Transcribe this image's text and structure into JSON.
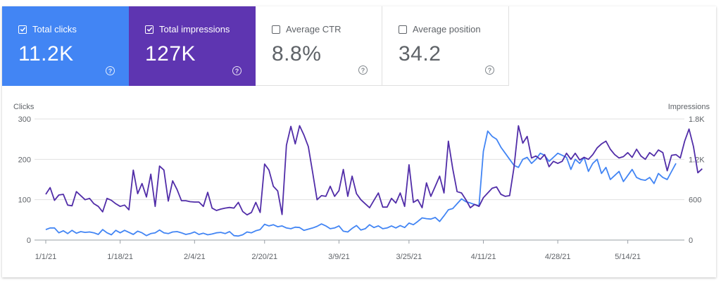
{
  "metrics": [
    {
      "label": "Total clicks",
      "value": "11.2K",
      "checked": true,
      "color": "#4285f4"
    },
    {
      "label": "Total impressions",
      "value": "127K",
      "checked": true,
      "color": "#5e35b1"
    },
    {
      "label": "Average CTR",
      "value": "8.8%",
      "checked": false,
      "color": "#ffffff"
    },
    {
      "label": "Average position",
      "value": "34.2",
      "checked": false,
      "color": "#ffffff"
    }
  ],
  "help_glyph": "?",
  "chart_data": {
    "type": "line",
    "left_axis_label": "Clicks",
    "right_axis_label": "Impressions",
    "left_ticks": [
      "0",
      "100",
      "200",
      "300"
    ],
    "left_ylim": [
      0,
      300
    ],
    "right_ticks": [
      "0",
      "600",
      "1.2K",
      "1.8K"
    ],
    "right_ylim": [
      0,
      1800
    ],
    "x_ticks": [
      "1/1/21",
      "1/18/21",
      "2/4/21",
      "2/20/21",
      "3/9/21",
      "3/25/21",
      "4/11/21",
      "4/28/21",
      "5/14/21"
    ],
    "x_tick_days": [
      0,
      17,
      34,
      50,
      67,
      83,
      100,
      117,
      133
    ],
    "grid": true,
    "series": [
      {
        "name": "Clicks",
        "axis": "left",
        "color": "#4285f4",
        "values": [
          26,
          30,
          30,
          18,
          23,
          16,
          24,
          17,
          21,
          19,
          20,
          18,
          14,
          26,
          18,
          13,
          24,
          18,
          24,
          19,
          14,
          22,
          18,
          11,
          16,
          18,
          25,
          18,
          16,
          20,
          21,
          18,
          14,
          16,
          20,
          14,
          17,
          13,
          15,
          18,
          19,
          16,
          21,
          11,
          10,
          13,
          20,
          18,
          23,
          26,
          39,
          35,
          38,
          33,
          35,
          30,
          28,
          32,
          31,
          24,
          27,
          30,
          34,
          40,
          35,
          28,
          30,
          35,
          22,
          20,
          29,
          36,
          25,
          28,
          38,
          31,
          35,
          28,
          30,
          35,
          30,
          36,
          31,
          42,
          38,
          46,
          55,
          53,
          52,
          56,
          46,
          60,
          75,
          78,
          90,
          102,
          95,
          92,
          88,
          85,
          220,
          270,
          257,
          250,
          230,
          215,
          200,
          185,
          180,
          200,
          205,
          190,
          200,
          215,
          210,
          195,
          205,
          215,
          210,
          205,
          175,
          200,
          190,
          205,
          170,
          190,
          200,
          165,
          180,
          150,
          160,
          170,
          145,
          160,
          175,
          155,
          150,
          148,
          155,
          140,
          165,
          155,
          150,
          170,
          190
        ]
      },
      {
        "name": "Impressions",
        "axis": "right",
        "color": "#512da8",
        "values": [
          680,
          780,
          590,
          670,
          680,
          520,
          510,
          720,
          660,
          600,
          620,
          540,
          500,
          420,
          620,
          590,
          540,
          500,
          520,
          450,
          1040,
          690,
          840,
          640,
          980,
          500,
          1100,
          1040,
          580,
          880,
          750,
          585,
          585,
          570,
          565,
          565,
          500,
          710,
          475,
          440,
          460,
          475,
          485,
          475,
          560,
          425,
          375,
          410,
          560,
          410,
          1130,
          1040,
          800,
          730,
          380,
          1410,
          1690,
          1430,
          1700,
          1560,
          1390,
          1000,
          600,
          660,
          650,
          800,
          650,
          735,
          1050,
          650,
          950,
          690,
          600,
          540,
          480,
          590,
          700,
          490,
          490,
          620,
          550,
          700,
          500,
          1120,
          560,
          600,
          480,
          850,
          650,
          800,
          950,
          700,
          1470,
          1060,
          720,
          700,
          600,
          480,
          530,
          500,
          630,
          700,
          770,
          790,
          680,
          650,
          660,
          1080,
          1700,
          1440,
          1540,
          1220,
          1250,
          1200,
          1270,
          1090,
          1170,
          1140,
          1170,
          1290,
          1200,
          1290,
          1190,
          1230,
          1200,
          1270,
          1370,
          1430,
          1470,
          1350,
          1270,
          1220,
          1240,
          1300,
          1230,
          1350,
          1250,
          1200,
          1300,
          1250,
          1340,
          1300,
          1030,
          1260,
          1270,
          1220,
          1470,
          1650,
          1390,
          1000,
          1060
        ]
      }
    ]
  }
}
